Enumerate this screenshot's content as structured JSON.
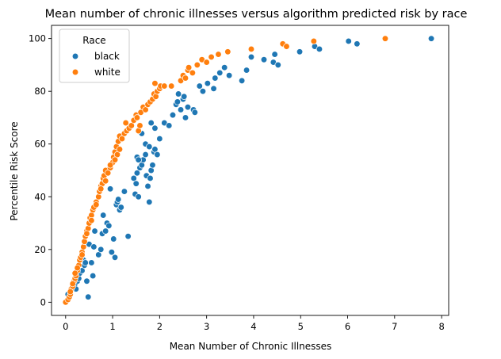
{
  "chart_data": {
    "type": "scatter",
    "title": "Mean number of chronic illnesses versus algorithm predicted risk by race",
    "xlabel": "Mean Number of Chronic Illnesses",
    "ylabel": "Percentile Risk Score",
    "xlim": [
      -0.3,
      8.15
    ],
    "ylim": [
      -5,
      105
    ],
    "xticks": [
      0,
      1,
      2,
      3,
      4,
      5,
      6,
      7,
      8
    ],
    "yticks": [
      0,
      20,
      40,
      60,
      80,
      100
    ],
    "grid": false,
    "legend": {
      "title": "Race",
      "placement": "top-left"
    },
    "series": [
      {
        "name": "black",
        "color": "#1f77b4",
        "points": [
          [
            0.05,
            3
          ],
          [
            0.1,
            4
          ],
          [
            0.15,
            6
          ],
          [
            0.2,
            7
          ],
          [
            0.22,
            5
          ],
          [
            0.25,
            8
          ],
          [
            0.28,
            9
          ],
          [
            0.3,
            11
          ],
          [
            0.35,
            12
          ],
          [
            0.38,
            16
          ],
          [
            0.4,
            14
          ],
          [
            0.42,
            15
          ],
          [
            0.45,
            8
          ],
          [
            0.48,
            2
          ],
          [
            0.5,
            22
          ],
          [
            0.55,
            15
          ],
          [
            0.58,
            10
          ],
          [
            0.6,
            21
          ],
          [
            0.62,
            27
          ],
          [
            0.7,
            18
          ],
          [
            0.75,
            20
          ],
          [
            0.78,
            26
          ],
          [
            0.8,
            33
          ],
          [
            0.85,
            27
          ],
          [
            0.88,
            30
          ],
          [
            0.92,
            29
          ],
          [
            0.95,
            43
          ],
          [
            0.98,
            19
          ],
          [
            1.02,
            24
          ],
          [
            1.05,
            17
          ],
          [
            1.08,
            37
          ],
          [
            1.1,
            38
          ],
          [
            1.12,
            39
          ],
          [
            1.15,
            35
          ],
          [
            1.18,
            36
          ],
          [
            1.25,
            42
          ],
          [
            1.33,
            25
          ],
          [
            1.45,
            47
          ],
          [
            1.48,
            41
          ],
          [
            1.5,
            45
          ],
          [
            1.52,
            49
          ],
          [
            1.55,
            40
          ],
          [
            1.58,
            51
          ],
          [
            1.62,
            52
          ],
          [
            1.65,
            54
          ],
          [
            1.7,
            56
          ],
          [
            1.72,
            48
          ],
          [
            1.75,
            44
          ],
          [
            1.78,
            38
          ],
          [
            1.8,
            47
          ],
          [
            1.82,
            50
          ],
          [
            1.85,
            52
          ],
          [
            1.88,
            57
          ],
          [
            1.9,
            58
          ],
          [
            1.95,
            56
          ],
          [
            1.52,
            55
          ],
          [
            1.55,
            54
          ],
          [
            1.62,
            64
          ],
          [
            1.7,
            60
          ],
          [
            1.78,
            59
          ],
          [
            1.82,
            68
          ],
          [
            1.9,
            66
          ],
          [
            2.0,
            62
          ],
          [
            2.1,
            68
          ],
          [
            2.2,
            67
          ],
          [
            2.28,
            71
          ],
          [
            2.35,
            75
          ],
          [
            2.38,
            76
          ],
          [
            2.4,
            79
          ],
          [
            2.45,
            73
          ],
          [
            2.5,
            77
          ],
          [
            2.52,
            78
          ],
          [
            2.55,
            70
          ],
          [
            2.6,
            74
          ],
          [
            2.72,
            73
          ],
          [
            2.75,
            72
          ],
          [
            2.85,
            82
          ],
          [
            2.92,
            80
          ],
          [
            3.02,
            83
          ],
          [
            3.15,
            81
          ],
          [
            3.18,
            85
          ],
          [
            3.28,
            87
          ],
          [
            3.38,
            89
          ],
          [
            3.48,
            86
          ],
          [
            3.75,
            84
          ],
          [
            3.85,
            88
          ],
          [
            3.95,
            93
          ],
          [
            4.22,
            92
          ],
          [
            4.42,
            91
          ],
          [
            4.45,
            94
          ],
          [
            4.52,
            90
          ],
          [
            4.98,
            95
          ],
          [
            5.3,
            97
          ],
          [
            5.4,
            96
          ],
          [
            6.02,
            99
          ],
          [
            6.2,
            98
          ],
          [
            7.78,
            100
          ]
        ]
      },
      {
        "name": "white",
        "color": "#ff7f0e",
        "points": [
          [
            0.0,
            0
          ],
          [
            0.05,
            1
          ],
          [
            0.08,
            2
          ],
          [
            0.1,
            3
          ],
          [
            0.12,
            5
          ],
          [
            0.15,
            6
          ],
          [
            0.18,
            8
          ],
          [
            0.2,
            9
          ],
          [
            0.22,
            10
          ],
          [
            0.25,
            12
          ],
          [
            0.28,
            14
          ],
          [
            0.3,
            16
          ],
          [
            0.32,
            17
          ],
          [
            0.35,
            19
          ],
          [
            0.38,
            21
          ],
          [
            0.4,
            23
          ],
          [
            0.42,
            25
          ],
          [
            0.45,
            27
          ],
          [
            0.48,
            28
          ],
          [
            0.5,
            30
          ],
          [
            0.52,
            32
          ],
          [
            0.55,
            33
          ],
          [
            0.58,
            35
          ],
          [
            0.6,
            36
          ],
          [
            0.65,
            38
          ],
          [
            0.7,
            40
          ],
          [
            0.72,
            42
          ],
          [
            0.75,
            44
          ],
          [
            0.78,
            45
          ],
          [
            0.8,
            47
          ],
          [
            0.82,
            48
          ],
          [
            0.85,
            50
          ],
          [
            0.9,
            49
          ],
          [
            0.95,
            51
          ],
          [
            1.0,
            53
          ],
          [
            1.02,
            55
          ],
          [
            1.05,
            57
          ],
          [
            1.08,
            59
          ],
          [
            1.1,
            56
          ],
          [
            1.12,
            61
          ],
          [
            1.15,
            63
          ],
          [
            1.2,
            62
          ],
          [
            1.25,
            64
          ],
          [
            1.28,
            68
          ],
          [
            1.3,
            65
          ],
          [
            1.35,
            66
          ],
          [
            1.4,
            67
          ],
          [
            1.45,
            69
          ],
          [
            1.5,
            71
          ],
          [
            1.52,
            70
          ],
          [
            1.55,
            65
          ],
          [
            1.58,
            67
          ],
          [
            1.6,
            72
          ],
          [
            1.65,
            74
          ],
          [
            1.7,
            73
          ],
          [
            1.75,
            75
          ],
          [
            1.8,
            76
          ],
          [
            1.85,
            77
          ],
          [
            1.88,
            79
          ],
          [
            1.9,
            83
          ],
          [
            1.92,
            78
          ],
          [
            1.95,
            80
          ],
          [
            2.0,
            81
          ],
          [
            2.02,
            82
          ],
          [
            2.1,
            82
          ],
          [
            2.25,
            82
          ],
          [
            2.45,
            84
          ],
          [
            2.5,
            86
          ],
          [
            2.55,
            85
          ],
          [
            2.6,
            88
          ],
          [
            2.62,
            89
          ],
          [
            2.7,
            87
          ],
          [
            2.8,
            90
          ],
          [
            2.9,
            92
          ],
          [
            3.0,
            91
          ],
          [
            3.1,
            93
          ],
          [
            3.25,
            94
          ],
          [
            3.45,
            95
          ],
          [
            3.95,
            96
          ],
          [
            4.62,
            98
          ],
          [
            4.7,
            97
          ],
          [
            5.28,
            99
          ],
          [
            6.8,
            100
          ],
          [
            0.1,
            4
          ],
          [
            0.15,
            7
          ],
          [
            0.2,
            11
          ],
          [
            0.25,
            13
          ],
          [
            0.35,
            18
          ],
          [
            0.45,
            26
          ],
          [
            0.55,
            31
          ],
          [
            0.65,
            37
          ],
          [
            0.75,
            43
          ],
          [
            0.85,
            46
          ],
          [
            0.95,
            52
          ],
          [
            1.05,
            54
          ],
          [
            1.15,
            58
          ]
        ]
      }
    ]
  }
}
